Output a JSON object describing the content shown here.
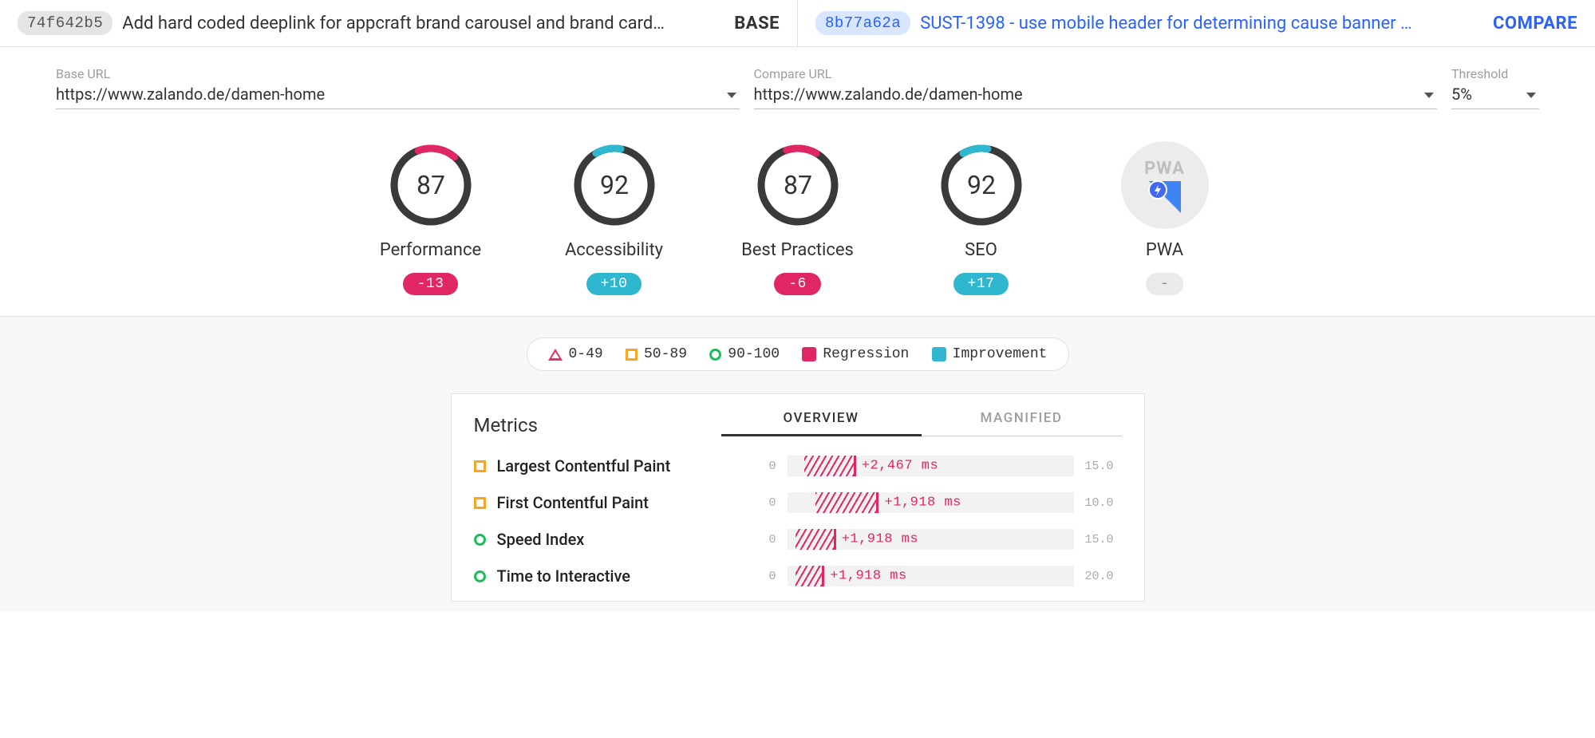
{
  "colors": {
    "regression": "#e02663",
    "improvement": "#2fb7cf",
    "blue": "#2962ff",
    "neutral_pill_bg": "#eaeaea",
    "neutral_pill_fg": "#888888",
    "gauge_track": "#3a3a3a",
    "border": "#e0e0e0",
    "panel_bg": "#f7f7f7",
    "orange": "#f6a623",
    "green": "#1bbd5a"
  },
  "header": {
    "base": {
      "sha": "74f642b5",
      "title": "Add hard coded deeplink for appcraft brand carousel and brand card…",
      "role": "BASE"
    },
    "compare": {
      "sha": "8b77a62a",
      "title": "SUST-1398 - use mobile header for determining cause banner …",
      "role": "COMPARE"
    }
  },
  "inputs": {
    "base_url": {
      "label": "Base URL",
      "value": "https://www.zalando.de/damen-home"
    },
    "compare_url": {
      "label": "Compare URL",
      "value": "https://www.zalando.de/damen-home"
    },
    "threshold": {
      "label": "Threshold",
      "value": "5%"
    }
  },
  "gauges": [
    {
      "id": "performance",
      "label": "Performance",
      "score": 87,
      "delta": "-13",
      "delta_type": "regression",
      "arc_start": -20,
      "arc_end": 40
    },
    {
      "id": "accessibility",
      "label": "Accessibility",
      "score": 92,
      "delta": "+10",
      "delta_type": "improvement",
      "arc_start": -30,
      "arc_end": 10
    },
    {
      "id": "best-practices",
      "label": "Best Practices",
      "score": 87,
      "delta": "-6",
      "delta_type": "regression",
      "arc_start": -18,
      "arc_end": 30
    },
    {
      "id": "seo",
      "label": "SEO",
      "score": 92,
      "delta": "+17",
      "delta_type": "improvement",
      "arc_start": -30,
      "arc_end": 10
    },
    {
      "id": "pwa",
      "label": "PWA",
      "score": null,
      "delta": "-",
      "delta_type": "neutral"
    }
  ],
  "legend": {
    "ranges": [
      {
        "shape": "triangle",
        "label": "0-49"
      },
      {
        "shape": "square",
        "label": "50-89"
      },
      {
        "shape": "circle",
        "label": "90-100"
      }
    ],
    "regression": "Regression",
    "improvement": "Improvement"
  },
  "metrics_panel": {
    "title": "Metrics",
    "tabs": [
      {
        "id": "overview",
        "label": "OVERVIEW",
        "active": true
      },
      {
        "id": "magnified",
        "label": "MAGNIFIED",
        "active": false
      }
    ],
    "scale_min_label": "0",
    "rows": [
      {
        "shape": "square",
        "name": "Largest Contentful Paint",
        "delta": "+2,467 ms",
        "bar_start_pct": 6,
        "bar_width_pct": 18,
        "max": "15.0"
      },
      {
        "shape": "square",
        "name": "First Contentful Paint",
        "delta": "+1,918 ms",
        "bar_start_pct": 10,
        "bar_width_pct": 22,
        "max": "10.0"
      },
      {
        "shape": "circle",
        "name": "Speed Index",
        "delta": "+1,918 ms",
        "bar_start_pct": 3,
        "bar_width_pct": 14,
        "max": "15.0"
      },
      {
        "shape": "circle",
        "name": "Time to Interactive",
        "delta": "+1,918 ms",
        "bar_start_pct": 3,
        "bar_width_pct": 10,
        "max": "20.0"
      }
    ]
  }
}
